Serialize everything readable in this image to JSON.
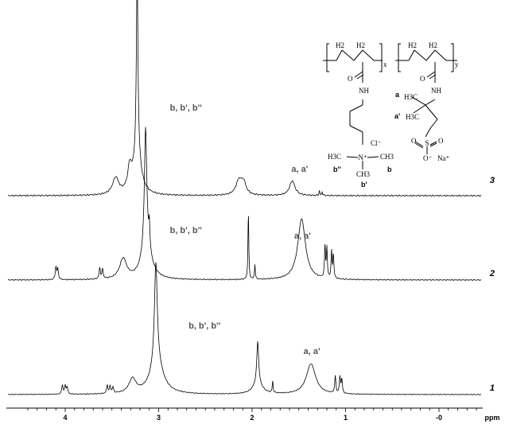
{
  "chart_data": {
    "type": "line",
    "title": "",
    "xlabel": "",
    "ylabel": "",
    "x_unit_label": "ppm",
    "x_range": [
      4.45,
      -0.75
    ],
    "x_reversed": true,
    "grid": false,
    "x_ticks": [
      "4",
      "3",
      "2",
      "1",
      "-0"
    ],
    "traces": [
      {
        "label": "1",
        "annotations": [
          {
            "text": "b, b', b''",
            "x": 2.68
          },
          {
            "text": "a, a'",
            "x": 1.45
          }
        ],
        "peaks": [
          {
            "x": 4.03,
            "h": 0.09,
            "w": 0.008
          },
          {
            "x": 4.0,
            "h": 0.08,
            "w": 0.008
          },
          {
            "x": 3.98,
            "h": 0.07,
            "w": 0.008
          },
          {
            "x": 3.55,
            "h": 0.08,
            "w": 0.008
          },
          {
            "x": 3.52,
            "h": 0.07,
            "w": 0.008
          },
          {
            "x": 3.49,
            "h": 0.06,
            "w": 0.008
          },
          {
            "x": 3.28,
            "h": 0.14,
            "w": 0.045
          },
          {
            "x": 3.03,
            "h": 1.0,
            "w": 0.018
          },
          {
            "x": 3.02,
            "h": 0.3,
            "w": 0.08
          },
          {
            "x": 1.94,
            "h": 0.42,
            "w": 0.012
          },
          {
            "x": 1.94,
            "h": 0.1,
            "w": 0.06
          },
          {
            "x": 1.78,
            "h": 0.12,
            "w": 0.005
          },
          {
            "x": 1.37,
            "h": 0.3,
            "w": 0.06
          },
          {
            "x": 1.11,
            "h": 0.17,
            "w": 0.007
          },
          {
            "x": 1.06,
            "h": 0.16,
            "w": 0.007
          },
          {
            "x": 1.04,
            "h": 0.14,
            "w": 0.007
          }
        ]
      },
      {
        "label": "2",
        "annotations": [
          {
            "text": "b, b', b''",
            "x": 2.88
          },
          {
            "text": "a, a'",
            "x": 1.55
          }
        ],
        "peaks": [
          {
            "x": 4.1,
            "h": 0.09,
            "w": 0.008
          },
          {
            "x": 4.08,
            "h": 0.08,
            "w": 0.008
          },
          {
            "x": 3.63,
            "h": 0.08,
            "w": 0.008
          },
          {
            "x": 3.6,
            "h": 0.07,
            "w": 0.008
          },
          {
            "x": 3.38,
            "h": 0.15,
            "w": 0.045
          },
          {
            "x": 3.14,
            "h": 0.88,
            "w": 0.015
          },
          {
            "x": 3.13,
            "h": 0.25,
            "w": 0.06
          },
          {
            "x": 3.1,
            "h": 0.18,
            "w": 0.006
          },
          {
            "x": 2.04,
            "h": 0.52,
            "w": 0.005
          },
          {
            "x": 1.97,
            "h": 0.11,
            "w": 0.005
          },
          {
            "x": 1.47,
            "h": 0.45,
            "w": 0.05
          },
          {
            "x": 1.22,
            "h": 0.24,
            "w": 0.006
          },
          {
            "x": 1.2,
            "h": 0.22,
            "w": 0.006
          },
          {
            "x": 1.15,
            "h": 0.2,
            "w": 0.006
          },
          {
            "x": 1.13,
            "h": 0.18,
            "w": 0.006
          }
        ]
      },
      {
        "label": "3",
        "annotations": [
          {
            "text": "b, b', b''",
            "x": 2.88
          },
          {
            "text": "a, a'",
            "x": 1.58
          }
        ],
        "peaks": [
          {
            "x": 3.46,
            "h": 0.09,
            "w": 0.04
          },
          {
            "x": 3.31,
            "h": 0.12,
            "w": 0.025
          },
          {
            "x": 3.23,
            "h": 1.0,
            "w": 0.01
          },
          {
            "x": 3.23,
            "h": 0.2,
            "w": 0.05
          },
          {
            "x": 2.14,
            "h": 0.08,
            "w": 0.04
          },
          {
            "x": 2.09,
            "h": 0.06,
            "w": 0.03
          },
          {
            "x": 1.57,
            "h": 0.08,
            "w": 0.035
          },
          {
            "x": 1.28,
            "h": 0.025,
            "w": 0.005
          },
          {
            "x": 1.25,
            "h": 0.02,
            "w": 0.005
          }
        ]
      }
    ]
  },
  "structure": {
    "units": [
      {
        "ch2": "H2",
        "ch2_sub": "",
        "subscript": "x",
        "amide_o": "O",
        "amide_nh": "NH"
      },
      {
        "ch2": "H2",
        "ch2_sub": "",
        "subscript": "y",
        "amide_o": "O",
        "amide_nh": "NH"
      }
    ],
    "cation": {
      "counter_ion": "Cl",
      "n": "N",
      "me_left": "H3C",
      "me_right": "CH3",
      "me_bottom": "CH3"
    },
    "anion": {
      "sodium": "Na",
      "o_minus": "O",
      "s": "S",
      "o1": "O",
      "o2": "O",
      "me1": "H3C",
      "me2": "H3C"
    },
    "labels": {
      "a": "a",
      "a_prime": "a'",
      "b": "b",
      "b_prime": "b'",
      "b_double_prime": "b''"
    }
  },
  "colors": {
    "trace": "#000000",
    "label": "#555555",
    "axis": "#000000"
  }
}
